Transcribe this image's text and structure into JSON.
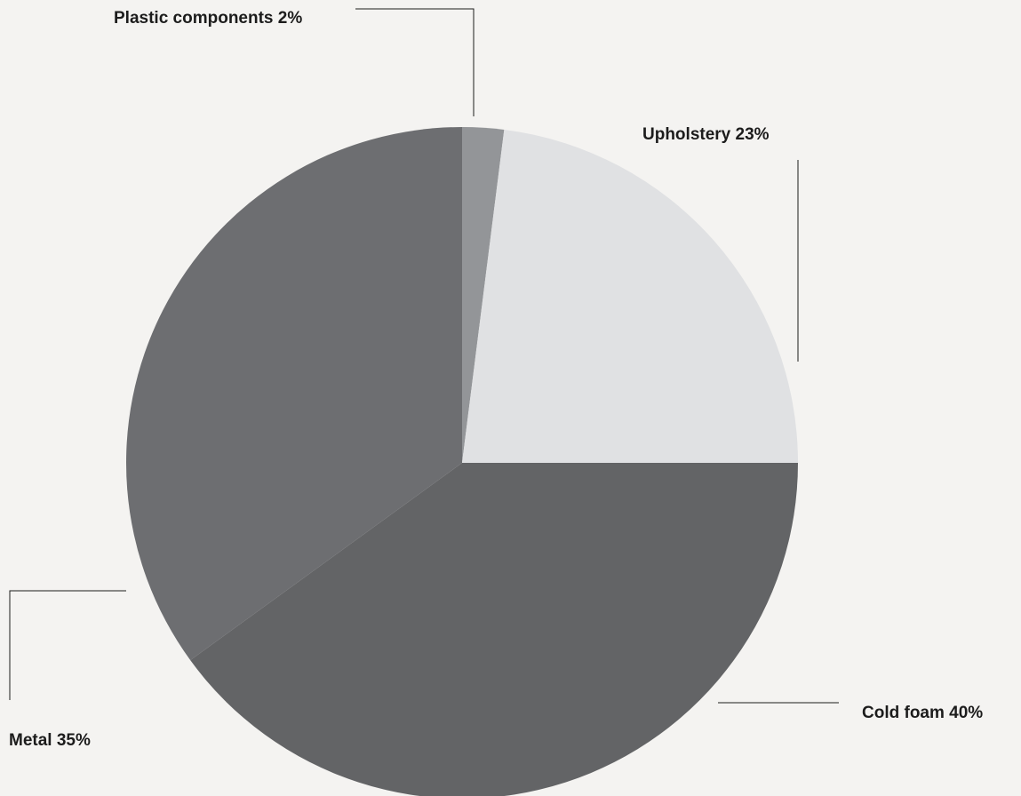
{
  "chart_data": {
    "type": "pie",
    "start_angle_deg": 0,
    "direction": "clockwise",
    "slices": [
      {
        "name": "Plastic components",
        "value": 2,
        "label": "Plastic components 2%",
        "color": "#939598"
      },
      {
        "name": "Upholstery",
        "value": 23,
        "label": "Upholstery 23%",
        "color": "#e0e1e3"
      },
      {
        "name": "Cold foam",
        "value": 40,
        "label": "Cold foam 40%",
        "color": "#636466"
      },
      {
        "name": "Metal",
        "value": 35,
        "label": "Metal 35%",
        "color": "#6d6e71"
      }
    ],
    "background": "#f4f3f1",
    "leader_line_color": "#1c1c1c"
  }
}
